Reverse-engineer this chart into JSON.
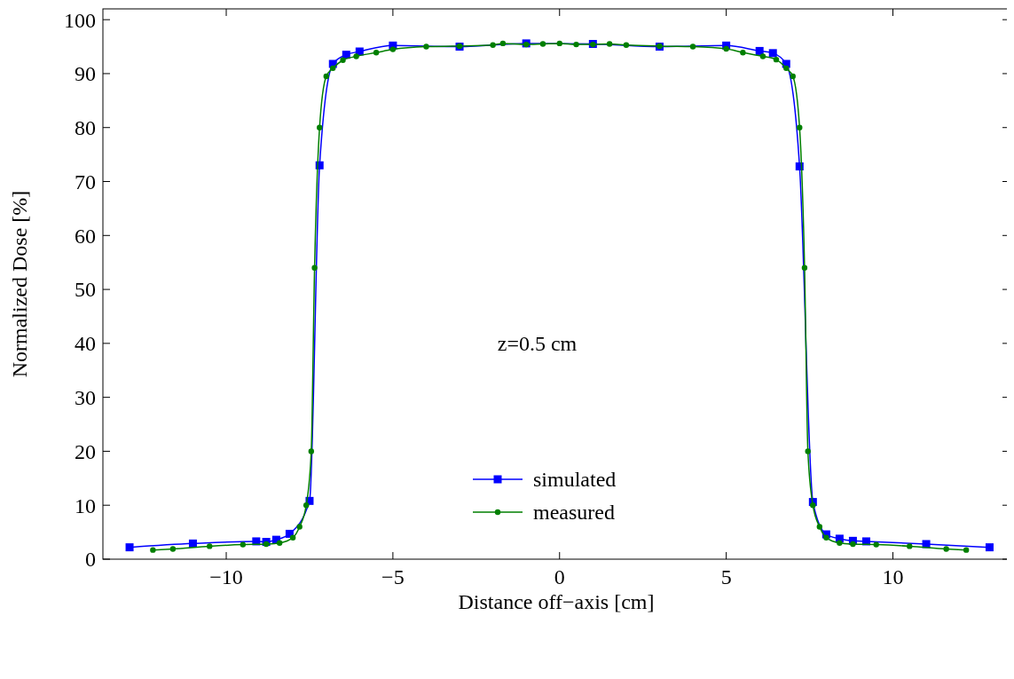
{
  "chart_data": {
    "type": "line",
    "xlabel": "Distance off−axis [cm]",
    "ylabel": "Normalized Dose [%]",
    "annotations": [
      "z=0.5 cm"
    ],
    "xlim": [
      -13.7,
      13.5
    ],
    "xticks": [
      {
        "value": -10,
        "label": "−10"
      },
      {
        "value": -5,
        "label": "−5"
      },
      0,
      5,
      10
    ],
    "ylim": [
      0,
      102
    ],
    "yticks": [
      0,
      10,
      20,
      30,
      40,
      50,
      60,
      70,
      80,
      90,
      100
    ],
    "grid": false,
    "legend": "bottom",
    "series": [
      {
        "name": "simulated",
        "color": "#0000ff",
        "marker": "square",
        "x": [
          -12.9,
          -11,
          -9.1,
          -8.8,
          -8.5,
          -8.1,
          -7.5,
          -7.2,
          -6.8,
          -6.4,
          -6.0,
          -5,
          -3,
          -1,
          1,
          3,
          5,
          6,
          6.4,
          6.8,
          7.2,
          7.6,
          8.0,
          8.4,
          8.8,
          9.2,
          11,
          12.9
        ],
        "values": [
          2.2,
          2.9,
          3.3,
          3.2,
          3.6,
          4.7,
          10.8,
          73,
          91.8,
          93.5,
          94.1,
          95.2,
          95.0,
          95.6,
          95.5,
          95.0,
          95.2,
          94.2,
          93.8,
          91.8,
          72.8,
          10.6,
          4.6,
          3.8,
          3.4,
          3.3,
          2.8,
          2.2
        ]
      },
      {
        "name": "measured",
        "color": "#007f00",
        "marker": "circle",
        "x": [
          -12.2,
          -11.6,
          -10.5,
          -9.5,
          -8.8,
          -8.4,
          -8.0,
          -7.8,
          -7.6,
          -7.45,
          -7.35,
          -7.2,
          -7.0,
          -6.8,
          -6.5,
          -6.1,
          -5.5,
          -5,
          -4,
          -3,
          -2,
          -1.7,
          -1,
          -0.5,
          0,
          0.5,
          1,
          1.5,
          2,
          3,
          4,
          5,
          5.5,
          6.1,
          6.5,
          6.8,
          7.0,
          7.2,
          7.35,
          7.45,
          7.6,
          7.8,
          8.0,
          8.4,
          8.8,
          9.5,
          10.5,
          11.6,
          12.2
        ],
        "values": [
          1.7,
          1.9,
          2.4,
          2.7,
          2.8,
          3.0,
          4.0,
          6,
          10,
          20,
          54,
          80,
          89.5,
          91,
          92.5,
          93.2,
          93.9,
          94.5,
          95.0,
          95.1,
          95.3,
          95.6,
          95.4,
          95.5,
          95.6,
          95.4,
          95.4,
          95.5,
          95.3,
          95.1,
          95.0,
          94.6,
          93.9,
          93.2,
          92.6,
          91,
          89.5,
          80,
          54,
          20,
          10,
          6,
          4.0,
          3.0,
          2.8,
          2.7,
          2.4,
          1.9,
          1.7
        ]
      }
    ]
  }
}
